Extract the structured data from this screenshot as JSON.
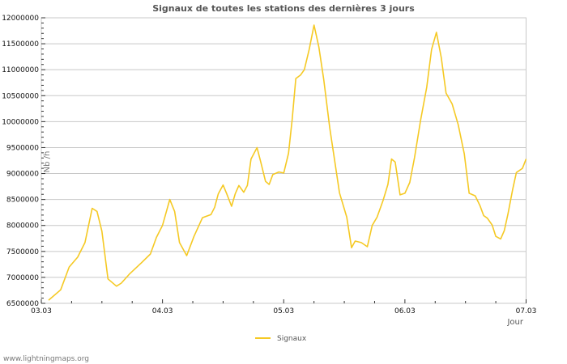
{
  "chart_data": {
    "type": "line",
    "title": "Signaux de toutes les stations des dernières 3 jours",
    "xlabel": "Jour",
    "ylabel": "Nb /h",
    "x_tick_labels": [
      "03.03",
      "04.03",
      "05.03",
      "06.03",
      "07.03"
    ],
    "y_tick_labels": [
      "6500000",
      "7000000",
      "7500000",
      "8000000",
      "8500000",
      "9000000",
      "9500000",
      "10000000",
      "10500000",
      "11000000",
      "11500000",
      "12000000"
    ],
    "ylim": [
      6500000,
      12000000
    ],
    "xlim_days": [
      0,
      4
    ],
    "grid": true,
    "legend_position": "bottom",
    "series": [
      {
        "name": "Signaux",
        "color": "#f5c924",
        "x_days": [
          0.06,
          0.16,
          0.23,
          0.3,
          0.36,
          0.42,
          0.46,
          0.5,
          0.55,
          0.62,
          0.66,
          0.73,
          0.83,
          0.9,
          0.95,
          1.0,
          1.06,
          1.1,
          1.14,
          1.2,
          1.26,
          1.33,
          1.4,
          1.43,
          1.46,
          1.5,
          1.53,
          1.57,
          1.6,
          1.63,
          1.67,
          1.7,
          1.73,
          1.78,
          1.81,
          1.85,
          1.88,
          1.91,
          1.96,
          2.0,
          2.04,
          2.07,
          2.1,
          2.14,
          2.17,
          2.21,
          2.25,
          2.29,
          2.33,
          2.38,
          2.43,
          2.46,
          2.52,
          2.56,
          2.59,
          2.64,
          2.69,
          2.73,
          2.77,
          2.82,
          2.86,
          2.89,
          2.92,
          2.96,
          3.0,
          3.04,
          3.08,
          3.13,
          3.18,
          3.22,
          3.26,
          3.3,
          3.34,
          3.39,
          3.44,
          3.49,
          3.53,
          3.58,
          3.62,
          3.65,
          3.68,
          3.72,
          3.75,
          3.79,
          3.82,
          3.85,
          3.89,
          3.92,
          3.97,
          4.0
        ],
        "values": [
          6560000,
          6760000,
          7200000,
          7390000,
          7670000,
          8330000,
          8270000,
          7890000,
          6970000,
          6830000,
          6890000,
          7070000,
          7290000,
          7450000,
          7770000,
          8000000,
          8500000,
          8270000,
          7670000,
          7420000,
          7790000,
          8150000,
          8210000,
          8350000,
          8610000,
          8780000,
          8610000,
          8370000,
          8610000,
          8770000,
          8640000,
          8770000,
          9280000,
          9500000,
          9230000,
          8850000,
          8790000,
          8980000,
          9030000,
          9010000,
          9390000,
          10040000,
          10830000,
          10900000,
          11000000,
          11390000,
          11860000,
          11440000,
          10820000,
          9880000,
          9100000,
          8630000,
          8160000,
          7570000,
          7700000,
          7670000,
          7590000,
          8000000,
          8160000,
          8480000,
          8790000,
          9280000,
          9220000,
          8590000,
          8620000,
          8830000,
          9310000,
          10030000,
          10660000,
          11390000,
          11720000,
          11230000,
          10550000,
          10340000,
          9940000,
          9380000,
          8620000,
          8570000,
          8380000,
          8190000,
          8140000,
          8010000,
          7790000,
          7740000,
          7900000,
          8220000,
          8700000,
          9020000,
          9100000,
          9280000
        ]
      }
    ]
  },
  "footer": {
    "site": "www.lightningmaps.org"
  }
}
